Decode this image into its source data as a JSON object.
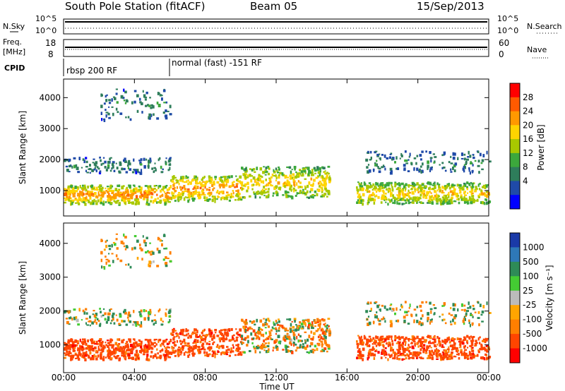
{
  "header": {
    "station": "South Pole Station (fitACF)",
    "beam": "Beam 05",
    "date": "15/Sep/2013"
  },
  "top_panels": {
    "nsky_label": "N.Sky",
    "nsky_ticks": [
      "10^5",
      "10^0"
    ],
    "nsearch_label": "N.Search",
    "nsearch_ticks": [
      "10^5",
      "10^0"
    ],
    "freq_label": "Freq.",
    "freq_unit": "[MHz]",
    "freq_ticks": [
      "18",
      "8"
    ],
    "nave_label": "Nave",
    "nave_ticks": [
      "60",
      "0"
    ],
    "cpid_label": "CPID",
    "cpid_segments": [
      {
        "label": "rbsp 200 RF",
        "start_hour": 0,
        "end_hour": 6
      },
      {
        "label": "normal (fast) -151 RF",
        "start_hour": 6,
        "end_hour": 24
      }
    ]
  },
  "power_panel": {
    "ylabel": "Slant Range [km]",
    "cbar_label": "Power [dB]",
    "cbar_ticks": [
      "28",
      "24",
      "20",
      "16",
      "12",
      "8",
      "4"
    ],
    "cbar_colors": [
      "#ff0000",
      "#ff5a00",
      "#ff9900",
      "#ffd400",
      "#a8c800",
      "#3ca83c",
      "#2e7d5b",
      "#1f4aa8",
      "#0000ff"
    ]
  },
  "velocity_panel": {
    "ylabel": "Slant Range [km]",
    "cbar_label": "Velocity [m s⁻¹]",
    "cbar_ticks": [
      "1000",
      "500",
      "100",
      "25",
      "-25",
      "-100",
      "-500",
      "-1000"
    ],
    "cbar_colors": [
      "#1a3aa8",
      "#2e78b8",
      "#2e8b57",
      "#44cc33",
      "#bbbbbb",
      "#ffa500",
      "#ff7f00",
      "#ff4500",
      "#ff0000"
    ]
  },
  "xaxis": {
    "label": "Time UT",
    "ticks": [
      "00:00",
      "04:00",
      "08:00",
      "12:00",
      "16:00",
      "20:00",
      "00:00"
    ]
  },
  "chart_data": {
    "type": "heatmap",
    "title": "South Pole Station (fitACF)",
    "xlabel": "Time UT",
    "ylabel": "Slant Range [km]",
    "xlim_hours": [
      0,
      24
    ],
    "ylim_km": [
      180,
      4600
    ],
    "yticks_km": [
      1000,
      2000,
      3000,
      4000
    ],
    "series": [
      {
        "name": "Power [dB]",
        "range_db": [
          0,
          32
        ]
      },
      {
        "name": "Velocity [m s⁻¹]",
        "range_ms": [
          -1000,
          1000
        ]
      }
    ],
    "echo_bands": [
      {
        "hours": [
          0,
          6
        ],
        "range_km": [
          600,
          1200
        ],
        "power_db": 24,
        "velocity_ms": -500
      },
      {
        "hours": [
          6,
          10
        ],
        "range_km": [
          700,
          1500
        ],
        "power_db": 24,
        "velocity_ms": -500
      },
      {
        "hours": [
          10,
          15
        ],
        "range_km": [
          800,
          1800
        ],
        "power_db": 20,
        "velocity_ms": -100
      },
      {
        "hours": [
          16.5,
          24
        ],
        "range_km": [
          600,
          1300
        ],
        "power_db": 20,
        "velocity_ms": -500
      },
      {
        "hours": [
          0,
          6
        ],
        "range_km": [
          1600,
          2100
        ],
        "power_db": 8,
        "velocity_ms": 0
      },
      {
        "hours": [
          2,
          6
        ],
        "range_km": [
          3300,
          4300
        ],
        "power_db": 8,
        "velocity_ms": 0
      },
      {
        "hours": [
          17,
          24
        ],
        "range_km": [
          1600,
          2300
        ],
        "power_db": 8,
        "velocity_ms": 0
      }
    ]
  }
}
